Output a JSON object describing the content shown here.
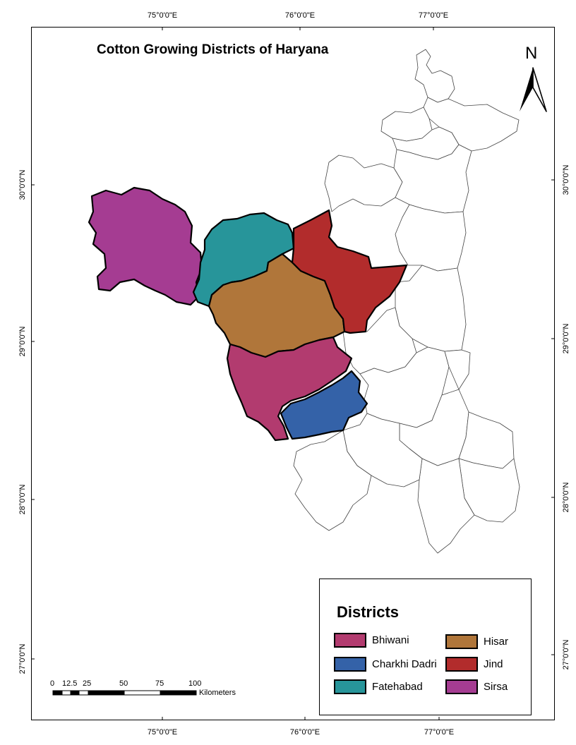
{
  "map": {
    "title": "Cotton Growing Districts of Haryana",
    "north_label": "N",
    "graticule": {
      "longitudes": [
        "75°0'0\"E",
        "76°0'0\"E",
        "77°0'0\"E"
      ],
      "latitudes": [
        "30°0'0\"N",
        "29°0'0\"N",
        "28°0'0\"N",
        "27°0'0\"N"
      ]
    },
    "colors": {
      "bhiwani": "#b23b6f",
      "charkhi_dadri": "#3462a8",
      "fatehabad": "#27959a",
      "hisar": "#b0763a",
      "jind": "#b22c2c",
      "sirsa": "#a53c92"
    }
  },
  "legend": {
    "title": "Districts",
    "items": [
      {
        "label": "Bhiwani",
        "color": "#b23b6f"
      },
      {
        "label": "Hisar",
        "color": "#b0763a"
      },
      {
        "label": "Charkhi Dadri",
        "color": "#3462a8"
      },
      {
        "label": "Jind",
        "color": "#b22c2c"
      },
      {
        "label": "Fatehabad",
        "color": "#27959a"
      },
      {
        "label": "Sirsa",
        "color": "#a53c92"
      }
    ]
  },
  "scale_bar": {
    "ticks": [
      "0",
      "12.5",
      "25",
      "50",
      "75",
      "100"
    ],
    "unit": "Kilometers"
  }
}
